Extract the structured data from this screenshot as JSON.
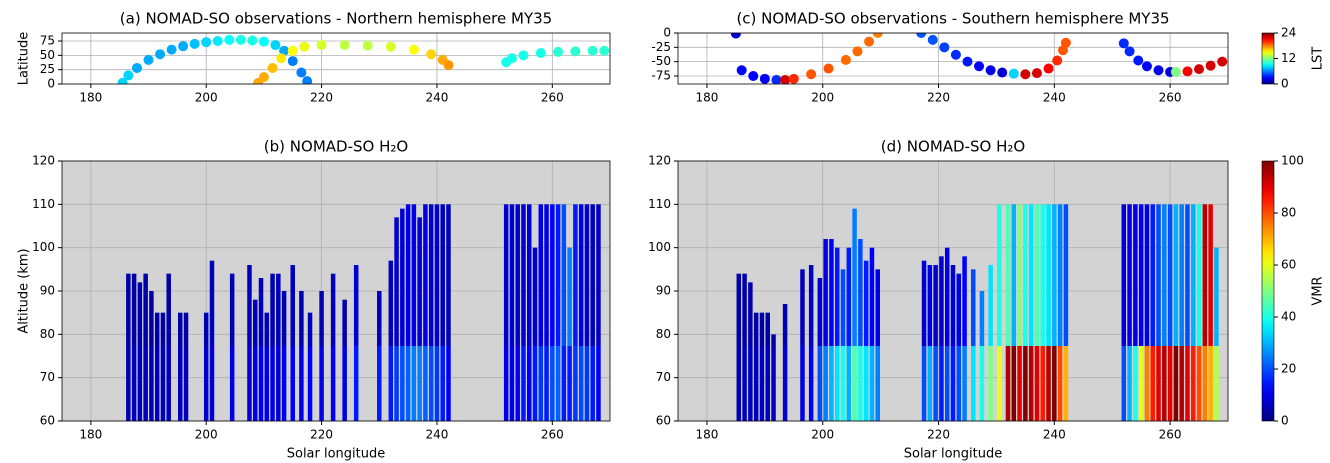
{
  "chart_data": [
    {
      "type": "scatter",
      "title": "(a) NOMAD-SO observations - Northern hemisphere MY35",
      "ylabel": "Latitude",
      "xlim": [
        175,
        270
      ],
      "xticks": [
        180,
        200,
        220,
        240,
        260
      ],
      "ylim": [
        0,
        89
      ],
      "yticks": [
        0,
        25,
        50,
        75
      ],
      "grid": true,
      "colormap": "jet",
      "clim": [
        0,
        24
      ],
      "x": [
        185.5,
        186.5,
        188,
        190,
        192,
        194,
        196,
        198,
        200,
        202,
        204,
        206,
        208,
        210,
        212,
        213.5,
        215,
        216.5,
        217.5,
        209,
        210,
        211.5,
        213,
        215,
        217,
        220,
        224,
        228,
        232,
        236,
        239,
        241,
        242,
        252,
        253,
        255,
        258,
        261,
        264,
        267,
        269
      ],
      "y": [
        2,
        15,
        28,
        42,
        52,
        60,
        66,
        70,
        73,
        75,
        77,
        77,
        76,
        74,
        68,
        58,
        40,
        20,
        5,
        2,
        12,
        28,
        45,
        58,
        65,
        68,
        68,
        67,
        65,
        60,
        52,
        42,
        33,
        38,
        45,
        50,
        54,
        56,
        57,
        58,
        58
      ],
      "c": [
        8,
        8,
        7,
        7,
        7,
        7,
        7,
        7.5,
        8,
        8.5,
        9,
        9.5,
        9.5,
        9,
        8,
        7,
        6,
        6,
        6,
        17,
        17,
        16.5,
        15.5,
        15,
        14.5,
        14,
        13.5,
        13.5,
        14,
        15,
        16,
        17,
        17.5,
        9.5,
        9.5,
        9.5,
        9.5,
        10,
        10,
        10,
        10
      ]
    },
    {
      "type": "heatmap",
      "title": "(b) NOMAD-SO H₂O",
      "xlabel": "Solar longitude",
      "ylabel": "Altitude (km)",
      "xlim": [
        175,
        270
      ],
      "xticks": [
        180,
        200,
        220,
        240,
        260
      ],
      "ylim": [
        60,
        120
      ],
      "yticks": [
        60,
        70,
        80,
        90,
        100,
        110,
        120
      ],
      "grid": true,
      "colormap": "jet",
      "clim": [
        0,
        100
      ],
      "x": [
        186.5,
        187.5,
        188.5,
        189.5,
        190.5,
        191.5,
        192.5,
        193.5,
        195.5,
        196.5,
        200,
        201,
        204.5,
        207.5,
        208.5,
        209.5,
        210.5,
        211.5,
        212.5,
        213.5,
        215,
        216.5,
        218,
        220,
        222,
        224,
        226,
        230,
        232,
        233,
        234,
        235,
        236,
        237,
        238,
        239,
        240,
        241,
        242,
        252,
        253,
        254,
        255,
        256,
        257,
        258,
        259,
        260,
        261,
        262,
        263,
        264,
        265,
        266,
        267,
        268
      ],
      "top": [
        94,
        94,
        92,
        94,
        90,
        85,
        85,
        94,
        85,
        85,
        85,
        97,
        94,
        96,
        88,
        93,
        85,
        94,
        94,
        90,
        96,
        90,
        85,
        90,
        94,
        88,
        96,
        90,
        97,
        107,
        109,
        110,
        110,
        107,
        110,
        110,
        110,
        110,
        110,
        110,
        110,
        110,
        110,
        110,
        100,
        110,
        110,
        110,
        110,
        110,
        100,
        110,
        110,
        110,
        110,
        110
      ],
      "vmr_low": [
        5,
        6,
        6,
        6,
        6,
        6,
        6,
        6,
        6,
        6,
        8,
        8,
        10,
        8,
        10,
        12,
        10,
        10,
        8,
        10,
        12,
        10,
        12,
        10,
        12,
        10,
        15,
        15,
        15,
        18,
        20,
        22,
        25,
        25,
        22,
        20,
        18,
        15,
        12,
        10,
        10,
        12,
        15,
        12,
        15,
        18,
        15,
        20,
        22,
        15,
        15,
        18,
        20,
        18,
        15,
        12
      ],
      "vmr_high": [
        4,
        4,
        4,
        4,
        4,
        4,
        4,
        4,
        4,
        4,
        5,
        6,
        5,
        6,
        5,
        6,
        6,
        5,
        6,
        5,
        6,
        5,
        6,
        5,
        6,
        5,
        8,
        6,
        6,
        8,
        8,
        10,
        10,
        8,
        10,
        8,
        8,
        6,
        6,
        8,
        8,
        8,
        8,
        8,
        8,
        10,
        10,
        12,
        15,
        20,
        25,
        15,
        10,
        8,
        6,
        6
      ]
    },
    {
      "type": "scatter",
      "title": "(c) NOMAD-SO observations - Southern hemisphere MY35",
      "xlim": [
        175,
        270
      ],
      "xticks": [
        180,
        200,
        220,
        240,
        260
      ],
      "ylim": [
        -89,
        0
      ],
      "yticks": [
        -75,
        -50,
        -25,
        0
      ],
      "grid": true,
      "colormap": "jet",
      "clim": [
        0,
        24
      ],
      "colorbar": {
        "label": "LST",
        "ticks": [
          0,
          12,
          24
        ]
      },
      "x": [
        185,
        186,
        188,
        190,
        192,
        193.5,
        195,
        198,
        201,
        204,
        206,
        208,
        209.5,
        217,
        219,
        221,
        223,
        225,
        227,
        229,
        231,
        233,
        235,
        237,
        239,
        240.5,
        241.5,
        242,
        252,
        253,
        254.5,
        256,
        258,
        260,
        261,
        263,
        265,
        267,
        269
      ],
      "y": [
        -1,
        -65,
        -75,
        -80,
        -82,
        -82,
        -80,
        -72,
        -62,
        -47,
        -32,
        -15,
        0,
        0,
        -12,
        -25,
        -38,
        -50,
        -58,
        -65,
        -69,
        -71,
        -72,
        -70,
        -62,
        -48,
        -30,
        -17,
        -18,
        -32,
        -48,
        -58,
        -65,
        -68,
        -68,
        -67,
        -63,
        -57,
        -50
      ],
      "c": [
        2,
        3,
        3,
        3,
        4,
        22,
        20,
        19,
        19,
        18.5,
        18.5,
        18.5,
        18,
        5,
        5,
        4.5,
        4,
        3.5,
        3,
        2.5,
        2,
        8,
        22,
        22,
        21,
        20,
        19,
        19,
        4,
        4,
        3.5,
        3,
        2.5,
        2,
        12,
        21,
        22,
        22,
        22
      ]
    },
    {
      "type": "heatmap",
      "title": "(d) NOMAD-SO H₂O",
      "xlabel": "Solar longitude",
      "xlim": [
        175,
        270
      ],
      "xticks": [
        180,
        200,
        220,
        240,
        260
      ],
      "ylim": [
        60,
        120
      ],
      "yticks": [
        60,
        70,
        80,
        90,
        100,
        110,
        120
      ],
      "grid": true,
      "colormap": "jet",
      "clim": [
        0,
        100
      ],
      "colorbar": {
        "label": "VMR",
        "ticks": [
          0,
          20,
          40,
          60,
          80,
          100
        ]
      },
      "x": [
        185.5,
        186.5,
        187.5,
        188.5,
        189.5,
        190.5,
        191.5,
        193.5,
        196.5,
        198,
        199.5,
        200.5,
        201.5,
        202.5,
        203.5,
        204.5,
        205.5,
        206.5,
        207.5,
        208.5,
        209.5,
        217.5,
        218.5,
        219.5,
        220.5,
        221.5,
        222.5,
        223.5,
        224.5,
        226,
        227.5,
        229,
        230.5,
        232,
        233,
        234,
        235,
        236,
        237,
        238,
        239,
        240,
        241,
        242,
        252,
        253,
        254,
        255,
        256,
        257,
        258,
        259,
        260,
        261,
        262,
        263,
        264,
        265,
        266,
        267,
        268
      ],
      "top": [
        94,
        94,
        92,
        85,
        85,
        85,
        80,
        87,
        95,
        96,
        93,
        102,
        102,
        100,
        95,
        100,
        109,
        102,
        97,
        100,
        95,
        97,
        96,
        96,
        98,
        100,
        96,
        94,
        98,
        95,
        90,
        96,
        110,
        110,
        110,
        110,
        110,
        110,
        110,
        110,
        110,
        110,
        110,
        110,
        110,
        110,
        110,
        110,
        110,
        110,
        110,
        110,
        110,
        110,
        110,
        110,
        110,
        110,
        110,
        110,
        100
      ],
      "vmr_low": [
        5,
        6,
        6,
        6,
        6,
        6,
        6,
        8,
        10,
        12,
        20,
        25,
        30,
        35,
        40,
        30,
        45,
        40,
        35,
        30,
        25,
        20,
        30,
        20,
        15,
        20,
        15,
        20,
        25,
        35,
        40,
        50,
        60,
        95,
        100,
        90,
        100,
        95,
        90,
        85,
        95,
        100,
        80,
        70,
        20,
        30,
        40,
        60,
        75,
        85,
        90,
        95,
        90,
        100,
        95,
        90,
        85,
        80,
        75,
        70,
        55
      ],
      "vmr_high": [
        4,
        4,
        4,
        4,
        4,
        4,
        4,
        5,
        6,
        6,
        8,
        10,
        12,
        15,
        20,
        15,
        25,
        20,
        15,
        12,
        10,
        8,
        10,
        8,
        8,
        10,
        8,
        10,
        12,
        20,
        25,
        35,
        40,
        45,
        30,
        50,
        40,
        35,
        45,
        40,
        35,
        30,
        25,
        20,
        8,
        10,
        10,
        12,
        10,
        15,
        20,
        25,
        20,
        30,
        25,
        20,
        30,
        40,
        95,
        90,
        30
      ]
    }
  ]
}
